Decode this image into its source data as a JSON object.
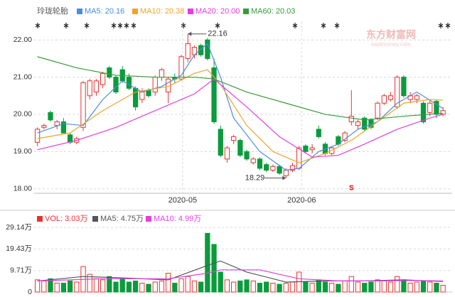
{
  "stock_name": "玲珑轮胎",
  "watermark": {
    "brand": "东方财富网",
    "url": "eastmoney.com"
  },
  "chart_data": [
    {
      "type": "candlestick",
      "xlim": [
        -0.5,
        63.4
      ],
      "ylim": [
        17.88,
        22.5
      ],
      "yticks": [
        {
          "value": 18,
          "label": "18.00"
        },
        {
          "value": 19,
          "label": "19.00"
        },
        {
          "value": 20,
          "label": "20.00"
        },
        {
          "value": 21,
          "label": "21.00"
        },
        {
          "value": 22,
          "label": "22.00"
        }
      ],
      "xticks": [
        {
          "value": 22.2,
          "label": "2020-05"
        },
        {
          "value": 40.4,
          "label": "2020-06"
        }
      ],
      "grid": true,
      "up_color": "#e8322f",
      "down_color": "#0a9b3c",
      "open": [
        19.25,
        19.65,
        20.05,
        19.7,
        19.8,
        19.45,
        19.25,
        19.65,
        20.5,
        20.6,
        20.8,
        21.25,
        21.0,
        21.2,
        21.0,
        20.7,
        20.4,
        20.65,
        20.6,
        21.0,
        20.6,
        21.0,
        20.95,
        21.5,
        21.6,
        21.85,
        22.0,
        21.25,
        19.6,
        18.8,
        19.3,
        19.3,
        19.0,
        18.7,
        18.8,
        18.65,
        18.5,
        18.6,
        18.35,
        18.5,
        18.55,
        19.15,
        19.05,
        19.6,
        19.2,
        18.95,
        19.4,
        19.3,
        19.8,
        19.7,
        19.9,
        19.85,
        19.9,
        20.3,
        20.4,
        20.2,
        21.0,
        20.4,
        20.4,
        20.3,
        20.05,
        20.35,
        20.0
      ],
      "high": [
        19.65,
        19.75,
        20.1,
        19.85,
        19.9,
        19.5,
        19.4,
        20.9,
        20.95,
        20.95,
        21.15,
        21.3,
        21.05,
        21.3,
        21.1,
        20.75,
        20.7,
        20.7,
        21.05,
        21.25,
        21.0,
        21.1,
        21.6,
        22.16,
        21.85,
        21.9,
        22.05,
        21.5,
        19.7,
        19.15,
        19.45,
        19.35,
        19.05,
        18.85,
        18.85,
        18.7,
        18.65,
        18.65,
        18.55,
        18.7,
        19.15,
        19.2,
        19.2,
        19.7,
        19.25,
        19.15,
        19.45,
        19.55,
        20.65,
        19.85,
        19.95,
        19.9,
        20.35,
        20.55,
        20.6,
        21.05,
        21.05,
        20.6,
        20.55,
        20.35,
        20.4,
        20.4,
        20.2
      ],
      "low": [
        19.15,
        19.6,
        19.8,
        19.6,
        19.5,
        19.2,
        19.2,
        19.55,
        20.4,
        20.5,
        20.7,
        20.95,
        20.55,
        20.85,
        20.65,
        20.1,
        20.3,
        20.45,
        20.5,
        20.9,
        20.3,
        20.85,
        20.9,
        21.4,
        21.5,
        21.55,
        21.45,
        19.75,
        18.85,
        18.7,
        19.2,
        18.85,
        18.75,
        18.65,
        18.5,
        18.45,
        18.45,
        18.38,
        18.29,
        18.45,
        18.5,
        18.95,
        18.95,
        19.35,
        18.9,
        18.9,
        19.15,
        19.25,
        19.7,
        19.6,
        19.55,
        19.6,
        19.85,
        20.25,
        20.35,
        20.15,
        20.45,
        20.3,
        20.3,
        19.75,
        19.95,
        19.9,
        19.95
      ],
      "close": [
        19.6,
        19.7,
        19.85,
        19.8,
        19.5,
        19.25,
        19.35,
        20.85,
        20.9,
        20.9,
        21.1,
        21.0,
        20.6,
        20.9,
        20.7,
        20.2,
        20.6,
        20.5,
        21.0,
        21.2,
        20.95,
        20.95,
        21.55,
        21.9,
        21.8,
        21.6,
        21.5,
        19.8,
        18.9,
        19.1,
        19.4,
        18.9,
        18.8,
        18.8,
        18.55,
        18.5,
        18.6,
        18.42,
        18.5,
        18.62,
        19.1,
        19.0,
        19.1,
        19.4,
        18.95,
        19.1,
        19.2,
        19.5,
        19.95,
        19.8,
        19.6,
        19.65,
        20.3,
        20.5,
        20.5,
        21.0,
        20.5,
        20.5,
        20.5,
        19.8,
        20.3,
        20.0,
        20.1
      ],
      "lines": [
        {
          "name": "MA5: 20.16",
          "color": "#4a8de0",
          "x": [
            0,
            4,
            7,
            10,
            13,
            16,
            19,
            22,
            24,
            26,
            28,
            30,
            34,
            38,
            40,
            43,
            46,
            49,
            52,
            55,
            58,
            62
          ],
          "values": [
            19.5,
            19.75,
            19.7,
            20.4,
            20.9,
            20.6,
            20.75,
            21.05,
            21.6,
            21.9,
            21.0,
            19.9,
            19.0,
            18.5,
            18.55,
            19.0,
            19.2,
            19.6,
            19.8,
            20.3,
            20.6,
            20.16
          ]
        },
        {
          "name": "MA10: 20.38",
          "color": "#eea52a",
          "x": [
            0,
            5,
            10,
            15,
            20,
            24,
            26,
            28,
            32,
            36,
            40,
            44,
            48,
            52,
            56,
            60,
            62
          ],
          "values": [
            19.35,
            19.5,
            20.1,
            20.6,
            20.75,
            21.1,
            21.2,
            20.8,
            19.7,
            19.0,
            18.7,
            18.95,
            19.3,
            19.8,
            20.3,
            20.4,
            20.38
          ]
        },
        {
          "name": "MA20: 20.00",
          "color": "#e040e0",
          "x": [
            0,
            6,
            12,
            18,
            24,
            27,
            32,
            37,
            42,
            46,
            50,
            55,
            60,
            62
          ],
          "values": [
            19.05,
            19.3,
            19.65,
            20.1,
            20.55,
            20.95,
            20.2,
            19.4,
            18.85,
            18.9,
            19.2,
            19.6,
            19.9,
            20.0
          ]
        },
        {
          "name": "MA60: 20.03",
          "color": "#3a9a3a",
          "x": [
            0,
            6,
            12,
            18,
            24,
            27,
            32,
            38,
            44,
            50,
            56,
            62
          ],
          "values": [
            21.55,
            21.25,
            21.05,
            21.0,
            21.0,
            20.95,
            20.6,
            20.3,
            20.0,
            19.85,
            19.95,
            20.03
          ]
        }
      ],
      "annotations": [
        {
          "label": "22.16",
          "value": 22.16,
          "x": 23,
          "side": "right"
        },
        {
          "label": "18.29",
          "value": 18.29,
          "x": 38,
          "side": "left"
        }
      ],
      "signal": {
        "label": "S",
        "x": 48
      }
    },
    {
      "type": "volume",
      "xlim": [
        -0.5,
        63.4
      ],
      "ylim": [
        0,
        35.6
      ],
      "yticks": [
        0,
        {
          "value": 9.71,
          "label": "9.71万"
        },
        {
          "value": 19.43,
          "label": "19.43万"
        },
        {
          "value": 29.14,
          "label": "29.14万"
        }
      ],
      "legend": "VOL: 3.03万",
      "values": [
        5.5,
        5.0,
        6.0,
        4.0,
        4.0,
        5.0,
        4.5,
        11.5,
        8.0,
        6.0,
        5.5,
        7.0,
        4.5,
        6.0,
        4.5,
        5.0,
        4.0,
        3.5,
        4.5,
        5.0,
        8.5,
        4.0,
        6.0,
        7.0,
        5.0,
        4.5,
        26.5,
        21.5,
        9.0,
        5.5,
        4.5,
        5.0,
        5.5,
        5.0,
        4.0,
        4.5,
        4.0,
        3.5,
        4.0,
        4.5,
        9.0,
        4.5,
        4.0,
        5.5,
        4.5,
        4.0,
        3.5,
        5.0,
        7.0,
        4.5,
        4.0,
        4.5,
        5.5,
        5.0,
        4.5,
        7.0,
        5.5,
        4.0,
        4.5,
        5.0,
        4.5,
        4.0,
        3.03
      ],
      "lines": [
        {
          "name": "MA5: 4.75万",
          "color": "#555555",
          "x": [
            0,
            7,
            12,
            20,
            26,
            28,
            32,
            38,
            44,
            50,
            56,
            62
          ],
          "values": [
            5,
            7,
            6.5,
            5.5,
            12,
            14,
            9,
            4.5,
            5,
            5,
            5.5,
            4.75
          ]
        },
        {
          "name": "MA10: 4.99万",
          "color": "#e040e0",
          "x": [
            0,
            10,
            20,
            26,
            28,
            34,
            40,
            46,
            52,
            58,
            62
          ],
          "values": [
            5,
            6,
            6,
            8.5,
            10,
            10,
            6,
            5,
            5,
            5.2,
            4.99
          ]
        }
      ]
    }
  ]
}
